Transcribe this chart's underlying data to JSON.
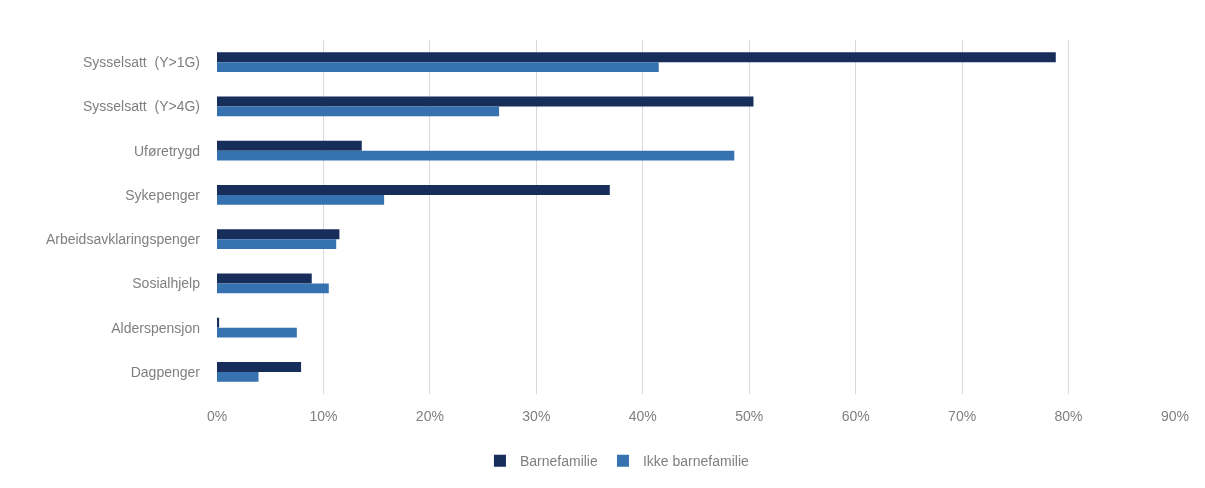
{
  "chart_data": {
    "type": "bar",
    "orientation": "horizontal",
    "categories": [
      "Sysselsatt  (Y>1G)",
      "Sysselsatt  (Y>4G)",
      "Uføretrygd",
      "Sykepenger",
      "Arbeidsavklaringspenger",
      "Sosialhjelp",
      "Alderspensjon",
      "Dagpenger"
    ],
    "series": [
      {
        "name": "Barnefamilie",
        "color": "#172d5a",
        "values": [
          78.8,
          50.4,
          13.6,
          36.9,
          11.5,
          8.9,
          0.2,
          7.9
        ]
      },
      {
        "name": "Ikke barnefamilie",
        "color": "#3672b0",
        "values": [
          41.5,
          26.5,
          48.6,
          15.7,
          11.2,
          10.5,
          7.5,
          3.9
        ]
      }
    ],
    "xlim": [
      0,
      90
    ],
    "xticks": [
      {
        "value": 0,
        "label": "0%"
      },
      {
        "value": 10,
        "label": "10%"
      },
      {
        "value": 20,
        "label": "20%"
      },
      {
        "value": 30,
        "label": "30%"
      },
      {
        "value": 40,
        "label": "40%"
      },
      {
        "value": 50,
        "label": "50%"
      },
      {
        "value": 60,
        "label": "60%"
      },
      {
        "value": 70,
        "label": "70%"
      },
      {
        "value": 80,
        "label": "80%"
      },
      {
        "value": 90,
        "label": "90%"
      }
    ],
    "grid": "x",
    "legend": "bottom"
  }
}
